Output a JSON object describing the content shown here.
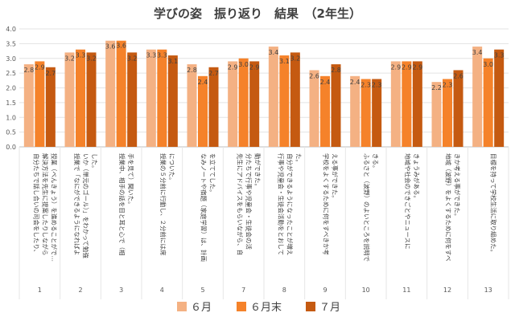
{
  "chart_data": {
    "type": "bar",
    "title": "学びの姿　振り返り　結果　（2年生）",
    "ylim": [
      0,
      4.0
    ],
    "yticks": [
      "0.0",
      "0.5",
      "1.0",
      "1.5",
      "2.0",
      "2.5",
      "3.0",
      "3.5",
      "4.0"
    ],
    "grid": true,
    "legend_position": "bottom",
    "categories": [
      "1",
      "2",
      "3",
      "4",
      "5",
      "7",
      "8",
      "9",
      "10",
      "11",
      "12",
      "13"
    ],
    "category_descriptions": [
      [
        "自分たちで話し合いの司会をしたり、",
        "解決方法を先生に提案したりしながら",
        "授業（べんきょう）を進めることがで…"
      ],
      [
        "授業で「なにができるようになればよ",
        "いか（単元のゴール）」をわかって勉強",
        "した。"
      ],
      [
        "授業中、相手の話を目と耳と心で（相",
        "手を見て）聞いた。"
      ],
      [
        "授業の５分前に行動し、２分前には席",
        "についた。"
      ],
      [
        "なみノートや宿題（家庭学習）は、計画",
        "を立ててした。"
      ],
      [
        "先生にアドバイスをもらいながら、自",
        "分たちで行事や児童会・生徒会の活",
        "動ができた。"
      ],
      [
        "行事や児童会・生徒会活動をとおして",
        "自分ができるようになったことが増え",
        "た。"
      ],
      [
        "学校をよくするために何をすべきか考",
        "える事ができた。"
      ],
      [
        "ふるさと（波野）のよいところを説明で",
        "きる。"
      ],
      [
        "地域や社会のできごとやニュースに",
        "きょうみがある。"
      ],
      [
        "地域（波野）をよくするために何をすべ",
        "きか考える事ができた。"
      ],
      [
        "目標を持って学校生活に取り組めた。"
      ]
    ],
    "series": [
      {
        "name": "６月",
        "color": "#F4B183",
        "values": [
          2.8,
          3.2,
          3.6,
          3.3,
          2.8,
          2.9,
          3.4,
          2.6,
          2.4,
          2.9,
          2.2,
          3.4
        ]
      },
      {
        "name": "６月末",
        "color": "#F5822A",
        "values": [
          2.9,
          3.3,
          3.6,
          3.3,
          2.4,
          3.0,
          3.1,
          2.4,
          2.3,
          2.9,
          2.3,
          3.0
        ]
      },
      {
        "name": "７月",
        "color": "#C55A11",
        "values": [
          2.7,
          3.2,
          3.2,
          3.1,
          2.7,
          2.9,
          3.2,
          2.8,
          2.3,
          2.9,
          2.6,
          3.3
        ]
      }
    ]
  }
}
